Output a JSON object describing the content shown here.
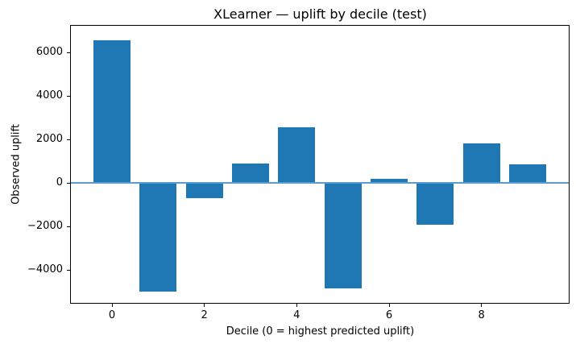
{
  "chart_data": {
    "type": "bar",
    "title": "XLearner — uplift by decile (test)",
    "xlabel": "Decile (0 = highest predicted uplift)",
    "ylabel": "Observed uplift",
    "categories": [
      "0",
      "1",
      "2",
      "3",
      "4",
      "5",
      "6",
      "7",
      "8",
      "9"
    ],
    "values": [
      6550,
      -5000,
      -720,
      900,
      2550,
      -4850,
      190,
      -1930,
      1810,
      840
    ],
    "bar_width": 0.8,
    "xlim": [
      -0.89,
      9.89
    ],
    "ylim": [
      -5530,
      7225
    ],
    "xticks": [
      {
        "value": 0,
        "label": "0"
      },
      {
        "value": 2,
        "label": "2"
      },
      {
        "value": 4,
        "label": "4"
      },
      {
        "value": 6,
        "label": "6"
      },
      {
        "value": 8,
        "label": "8"
      }
    ],
    "yticks": [
      {
        "value": -4000,
        "label": "−4000"
      },
      {
        "value": -2000,
        "label": "−2000"
      },
      {
        "value": 0,
        "label": "0"
      },
      {
        "value": 2000,
        "label": "2000"
      },
      {
        "value": 4000,
        "label": "4000"
      },
      {
        "value": 6000,
        "label": "6000"
      }
    ],
    "zero_line": {
      "value": 0
    },
    "grid": false,
    "legend_visible": false,
    "colors": {
      "bar": "#1f77b4",
      "zero_line": "#5b9bd0",
      "axis": "#000000",
      "background": "#ffffff",
      "text": "#000000"
    }
  }
}
